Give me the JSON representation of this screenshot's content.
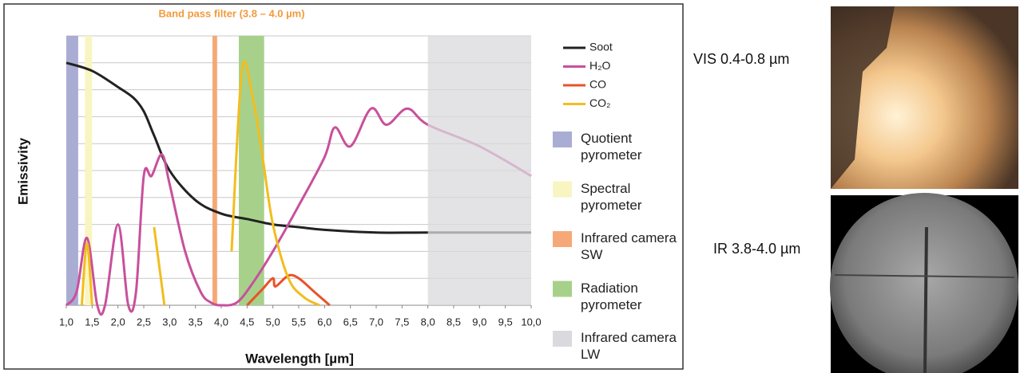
{
  "chart_data": {
    "type": "line",
    "title": "Band pass filter (3.8 – 4.0 µm)",
    "x_label": "Wavelength [µm]",
    "y_label": "Emissivity",
    "xlim": [
      1,
      10
    ],
    "ylim": [
      0,
      1
    ],
    "xticks": [
      {
        "value": 1,
        "label": "1,0"
      },
      {
        "value": 1.5,
        "label": "1,5"
      },
      {
        "value": 2,
        "label": "2,0"
      },
      {
        "value": 2.5,
        "label": "2,5"
      },
      {
        "value": 3,
        "label": "3,0"
      },
      {
        "value": 3.5,
        "label": "3,5"
      },
      {
        "value": 4,
        "label": "4,0"
      },
      {
        "value": 4.5,
        "label": "4,5"
      },
      {
        "value": 5,
        "label": "5,0"
      },
      {
        "value": 5.5,
        "label": "5,5"
      },
      {
        "value": 6,
        "label": "6,0"
      },
      {
        "value": 6.5,
        "label": "6,5"
      },
      {
        "value": 7,
        "label": "7,0"
      },
      {
        "value": 7.5,
        "label": "7,5"
      },
      {
        "value": 8,
        "label": "8,0"
      },
      {
        "value": 8.5,
        "label": "8,5"
      },
      {
        "value": 9,
        "label": "9,0"
      },
      {
        "value": 9.5,
        "label": "9,5"
      },
      {
        "value": 10,
        "label": "10,0"
      }
    ],
    "yticks": [
      0,
      0.1,
      0.2,
      0.3,
      0.4,
      0.5,
      0.6,
      0.7,
      0.8,
      0.9,
      1
    ],
    "grid": true,
    "series": [
      {
        "name": "Soot",
        "color": "#222222",
        "x": [
          1,
          1.5,
          2,
          2.3,
          2.5,
          2.7,
          3,
          3.5,
          4,
          4.5,
          5,
          5.5,
          6,
          7,
          8,
          10
        ],
        "values": [
          0.9,
          0.87,
          0.81,
          0.77,
          0.72,
          0.63,
          0.5,
          0.39,
          0.34,
          0.32,
          0.3,
          0.29,
          0.28,
          0.27,
          0.27,
          0.27
        ]
      },
      {
        "name": "H₂O",
        "color": "#c8509c",
        "x": [
          1,
          1.2,
          1.4,
          1.6,
          1.75,
          2,
          2.2,
          2.35,
          2.5,
          2.65,
          2.85,
          3,
          3.3,
          3.6,
          3.8,
          4,
          4.3,
          4.6,
          5,
          5.5,
          6,
          6.2,
          6.5,
          6.9,
          7.2,
          7.6,
          8,
          9,
          10
        ],
        "values": [
          0,
          0.05,
          0.25,
          0,
          0,
          0.3,
          0,
          0.05,
          0.48,
          0.48,
          0.56,
          0.45,
          0.2,
          0.05,
          0.01,
          0,
          0.01,
          0.08,
          0.2,
          0.37,
          0.55,
          0.66,
          0.59,
          0.73,
          0.67,
          0.73,
          0.67,
          0.59,
          0.48
        ]
      },
      {
        "name": "CO",
        "color": "#e8532a",
        "x": [
          4.5,
          4.8,
          5,
          5.05,
          5.3,
          5.5,
          5.8,
          6.1
        ],
        "values": [
          0,
          0.06,
          0.1,
          0.07,
          0.11,
          0.1,
          0.05,
          0
        ]
      },
      {
        "name": "CO₂",
        "color": "#f2bd1e",
        "x": [
          1.3,
          1.4,
          1.5,
          2.5,
          2.7,
          2.9,
          3.9,
          4.2,
          4.4,
          4.6,
          4.8,
          5,
          5.3,
          5.6,
          5.9
        ],
        "values": [
          0,
          0.23,
          0,
          null,
          0.29,
          0,
          null,
          0.2,
          0.87,
          0.78,
          0.55,
          0.3,
          0.1,
          0.03,
          0
        ]
      }
    ],
    "bands": [
      {
        "name": "Quotient pyrometer",
        "color": "#a9acd3",
        "x": [
          1,
          1.23
        ]
      },
      {
        "name": "Spectral pyrometer",
        "color": "#f8f5c2",
        "x": [
          1.36,
          1.5
        ]
      },
      {
        "name": "Infrared camera SW",
        "color": "#f6a877",
        "x": [
          3.83,
          3.92
        ]
      },
      {
        "name": "Radiation pyrometer",
        "color": "#a7d18a",
        "x": [
          4.34,
          4.83
        ]
      },
      {
        "name": "Infrared camera LW",
        "color": "#d9d9de",
        "x": [
          8,
          10
        ]
      }
    ]
  },
  "images": [
    {
      "label": "VIS 0.4-0.8 µm"
    },
    {
      "label": "IR 3.8-4.0 µm"
    }
  ]
}
